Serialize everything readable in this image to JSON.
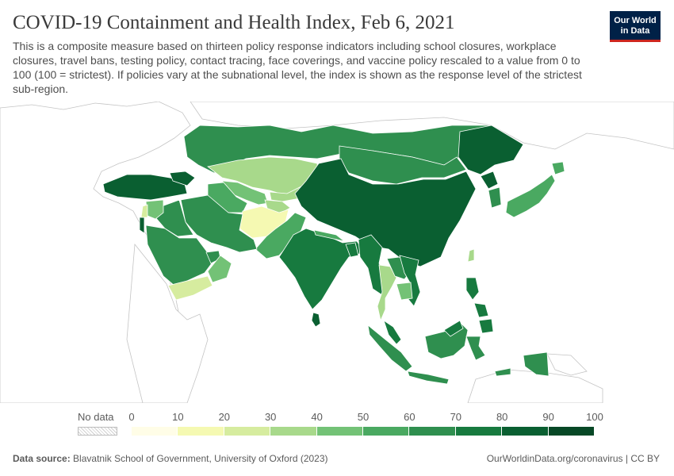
{
  "header": {
    "title": "COVID-19 Containment and Health Index, Feb 6, 2021",
    "subtitle": "This is a composite measure based on thirteen policy response indicators including school closures, workplace closures, travel bans, testing policy, contact tracing, face coverings, and vaccine policy rescaled to a value from 0 to 100 (100 = strictest). If policies vary at the subnational level, the index is shown as the response level of the strictest sub-region."
  },
  "logo": {
    "line1": "Our World",
    "line2": "in Data"
  },
  "legend": {
    "no_data_label": "No data",
    "ticks": [
      "0",
      "10",
      "20",
      "30",
      "40",
      "50",
      "60",
      "70",
      "80",
      "90",
      "100"
    ],
    "bin_colors": [
      "#fffde7",
      "#f5f9b2",
      "#d6ec9f",
      "#a8d98b",
      "#73c276",
      "#4aa961",
      "#2f8f4f",
      "#177a3f",
      "#0a5f31",
      "#074826"
    ]
  },
  "map_colors": {
    "no_data_fill": "#ffffff",
    "border": "#bfbfbf",
    "country_border": "#ffffff"
  },
  "map_data": {
    "regions": [
      {
        "name": "Russia (south)",
        "value": 68
      },
      {
        "name": "Kazakhstan",
        "value": 30
      },
      {
        "name": "Uzbekistan",
        "value": 40
      },
      {
        "name": "Turkmenistan",
        "value": 50
      },
      {
        "name": "Kyrgyzstan",
        "value": 35
      },
      {
        "name": "Tajikistan",
        "value": 30
      },
      {
        "name": "Afghanistan",
        "value": 12
      },
      {
        "name": "Pakistan",
        "value": 53
      },
      {
        "name": "India",
        "value": 70
      },
      {
        "name": "Sri Lanka",
        "value": 80
      },
      {
        "name": "Nepal",
        "value": 55
      },
      {
        "name": "Bangladesh",
        "value": 72
      },
      {
        "name": "Iran",
        "value": 68
      },
      {
        "name": "Iraq",
        "value": 62
      },
      {
        "name": "Syria",
        "value": 42
      },
      {
        "name": "Turkey",
        "value": 82
      },
      {
        "name": "Israel",
        "value": 85
      },
      {
        "name": "Lebanon",
        "value": 22
      },
      {
        "name": "Saudi Arabia",
        "value": 66
      },
      {
        "name": "Oman",
        "value": 45
      },
      {
        "name": "Yemen",
        "value": 22
      },
      {
        "name": "UAE",
        "value": 60
      },
      {
        "name": "Mongolia",
        "value": 66
      },
      {
        "name": "China",
        "value": 82
      },
      {
        "name": "North-east (Russia border)",
        "value": 82
      },
      {
        "name": "South Korea",
        "value": 68
      },
      {
        "name": "Japan",
        "value": 52
      },
      {
        "name": "Taiwan",
        "value": 30
      },
      {
        "name": "Myanmar",
        "value": 78
      },
      {
        "name": "Thailand",
        "value": 30
      },
      {
        "name": "Laos",
        "value": 62
      },
      {
        "name": "Vietnam",
        "value": 70
      },
      {
        "name": "Cambodia",
        "value": 45
      },
      {
        "name": "Malaysia",
        "value": 72
      },
      {
        "name": "Indonesia",
        "value": 68
      },
      {
        "name": "Philippines",
        "value": 72
      },
      {
        "name": "Papua New Guinea",
        "value": 60
      }
    ]
  },
  "footer": {
    "source_label": "Data source:",
    "source_text": "Blavatnik School of Government, University of Oxford (2023)",
    "right_text": "OurWorldinData.org/coronavirus | CC BY"
  }
}
